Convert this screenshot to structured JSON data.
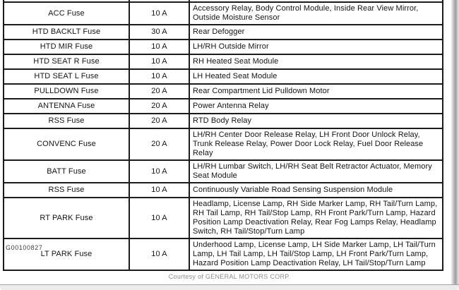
{
  "page": {
    "figure_id": "G00100827",
    "credit": "Courtesy of GENERAL MOTORS CORP."
  },
  "fuse_table": {
    "rows": [
      {
        "fuse": "ACC Fuse",
        "amps": "10 A",
        "circuits": "Accessory Relay, Body Control Module, Inside Rear View Mirror, Outside Moisture Sensor"
      },
      {
        "fuse": "HTD BACKLT Fuse",
        "amps": "30 A",
        "circuits": "Rear Defogger"
      },
      {
        "fuse": "HTD MIR Fuse",
        "amps": "10 A",
        "circuits": "LH/RH Outside Mirror"
      },
      {
        "fuse": "HTD SEAT R Fuse",
        "amps": "10 A",
        "circuits": "RH Heated Seat Module"
      },
      {
        "fuse": "HTD SEAT L Fuse",
        "amps": "10 A",
        "circuits": "LH Heated Seat Module"
      },
      {
        "fuse": "PULLDOWN Fuse",
        "amps": "20 A",
        "circuits": "Rear Compartment Lid Pulldown Motor"
      },
      {
        "fuse": "ANTENNA Fuse",
        "amps": "20 A",
        "circuits": "Power Antenna Relay"
      },
      {
        "fuse": "RSS Fuse",
        "amps": "20 A",
        "circuits": "RTD Body Relay"
      },
      {
        "fuse": "CONVENC Fuse",
        "amps": "20 A",
        "circuits": "LH/RH Center Door Release Relay, LH Front Door Unlock Relay, Trunk Release Relay, Power Door Lock Relay, Fuel Door Release Relay"
      },
      {
        "fuse": "BATT Fuse",
        "amps": "10 A",
        "circuits": "LH/RH Lumbar Switch, LH/RH Seat Belt Retractor Actuator, Memory Seat Module"
      },
      {
        "fuse": "RSS Fuse",
        "amps": "10 A",
        "circuits": "Continuously Variable Road Sensing Suspension Module"
      },
      {
        "fuse": "RT PARK Fuse",
        "amps": "10 A",
        "circuits": "Headlamp, License Lamp, RH Side Marker Lamp, RH Tail/Turn Lamp, RH Tail Lamp, RH Tail/Stop Lamp, RH Front Park/Turn Lamp, Hazard Position Lamp Deactivation Relay, Rear Fog Lamps Relay, Headlamp Switch, RH Tail/Stop/Turn Lamp"
      },
      {
        "fuse": "LT PARK Fuse",
        "amps": "10 A",
        "circuits": "Underhood Lamp, License Lamp, LH Side Marker Lamp, LH Tail/Turn Lamp, LH Tail Lamp, LH Tail/Stop Lamp, LH Front Park/Turn Lamp, Hazard Position Lamp Deactivation Relay, LH Tail/Stop/Turn Lamp"
      }
    ]
  }
}
